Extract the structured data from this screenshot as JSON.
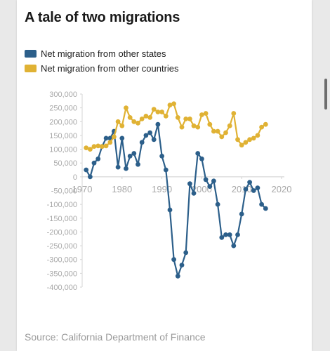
{
  "title": "A tale of two migrations",
  "source": "Source: California Department of Finance",
  "colors": {
    "states": "#2c5f8a",
    "countries": "#e0b234",
    "grid": "#dddddd",
    "tick": "#a8a8a8"
  },
  "legend": [
    {
      "label": "Net migration from other states",
      "color": "#2c5f8a"
    },
    {
      "label": "Net migration from other countries",
      "color": "#e0b234"
    }
  ],
  "chart_data": {
    "type": "line",
    "title": "A tale of two migrations",
    "xlabel": "",
    "ylabel": "",
    "xlim": [
      1970,
      2020
    ],
    "ylim": [
      -400000,
      300000
    ],
    "xticks": [
      1970,
      1980,
      1990,
      2000,
      2010,
      2020
    ],
    "xtick_labels": [
      "1970",
      "1980",
      "1990",
      "2000",
      "2010",
      "2020"
    ],
    "yticks": [
      300000,
      250000,
      200000,
      150000,
      100000,
      50000,
      0,
      -50000,
      -100000,
      -150000,
      -200000,
      -250000,
      -300000,
      -350000,
      -400000
    ],
    "ytick_labels": [
      "300,000",
      "250,000",
      "200,000",
      "150,000",
      "100,000",
      "50,000",
      "0",
      "-50,000",
      "-100,000",
      "-150,000",
      "-200,000",
      "-250,000",
      "-300,000",
      "-350,000",
      "-400,000"
    ],
    "x": [
      1971,
      1972,
      1973,
      1974,
      1975,
      1976,
      1977,
      1978,
      1979,
      1980,
      1981,
      1982,
      1983,
      1984,
      1985,
      1986,
      1987,
      1988,
      1989,
      1990,
      1991,
      1992,
      1993,
      1994,
      1995,
      1996,
      1997,
      1998,
      1999,
      2000,
      2001,
      2002,
      2003,
      2004,
      2005,
      2006,
      2007,
      2008,
      2009,
      2010,
      2011,
      2012,
      2013,
      2014,
      2015,
      2016
    ],
    "series": [
      {
        "name": "Net migration from other states",
        "color": "#2c5f8a",
        "values": [
          25000,
          0,
          50000,
          65000,
          110000,
          140000,
          140000,
          165000,
          35000,
          140000,
          30000,
          75000,
          85000,
          45000,
          125000,
          150000,
          160000,
          135000,
          190000,
          75000,
          25000,
          -120000,
          -300000,
          -360000,
          -320000,
          -275000,
          -25000,
          -60000,
          85000,
          65000,
          -10000,
          -35000,
          -15000,
          -100000,
          -220000,
          -210000,
          -210000,
          -250000,
          -210000,
          -135000,
          -45000,
          -20000,
          -50000,
          -40000,
          -100000,
          -115000
        ]
      },
      {
        "name": "Net migration from other countries",
        "color": "#e0b234",
        "values": [
          105000,
          100000,
          110000,
          112000,
          110000,
          112000,
          125000,
          145000,
          200000,
          185000,
          250000,
          215000,
          200000,
          195000,
          210000,
          220000,
          215000,
          245000,
          235000,
          235000,
          220000,
          260000,
          265000,
          215000,
          180000,
          210000,
          210000,
          185000,
          180000,
          225000,
          230000,
          190000,
          165000,
          165000,
          145000,
          160000,
          185000,
          230000,
          135000,
          115000,
          125000,
          135000,
          140000,
          150000,
          180000,
          190000
        ]
      }
    ],
    "grid": false,
    "legend_position": "top-left"
  }
}
